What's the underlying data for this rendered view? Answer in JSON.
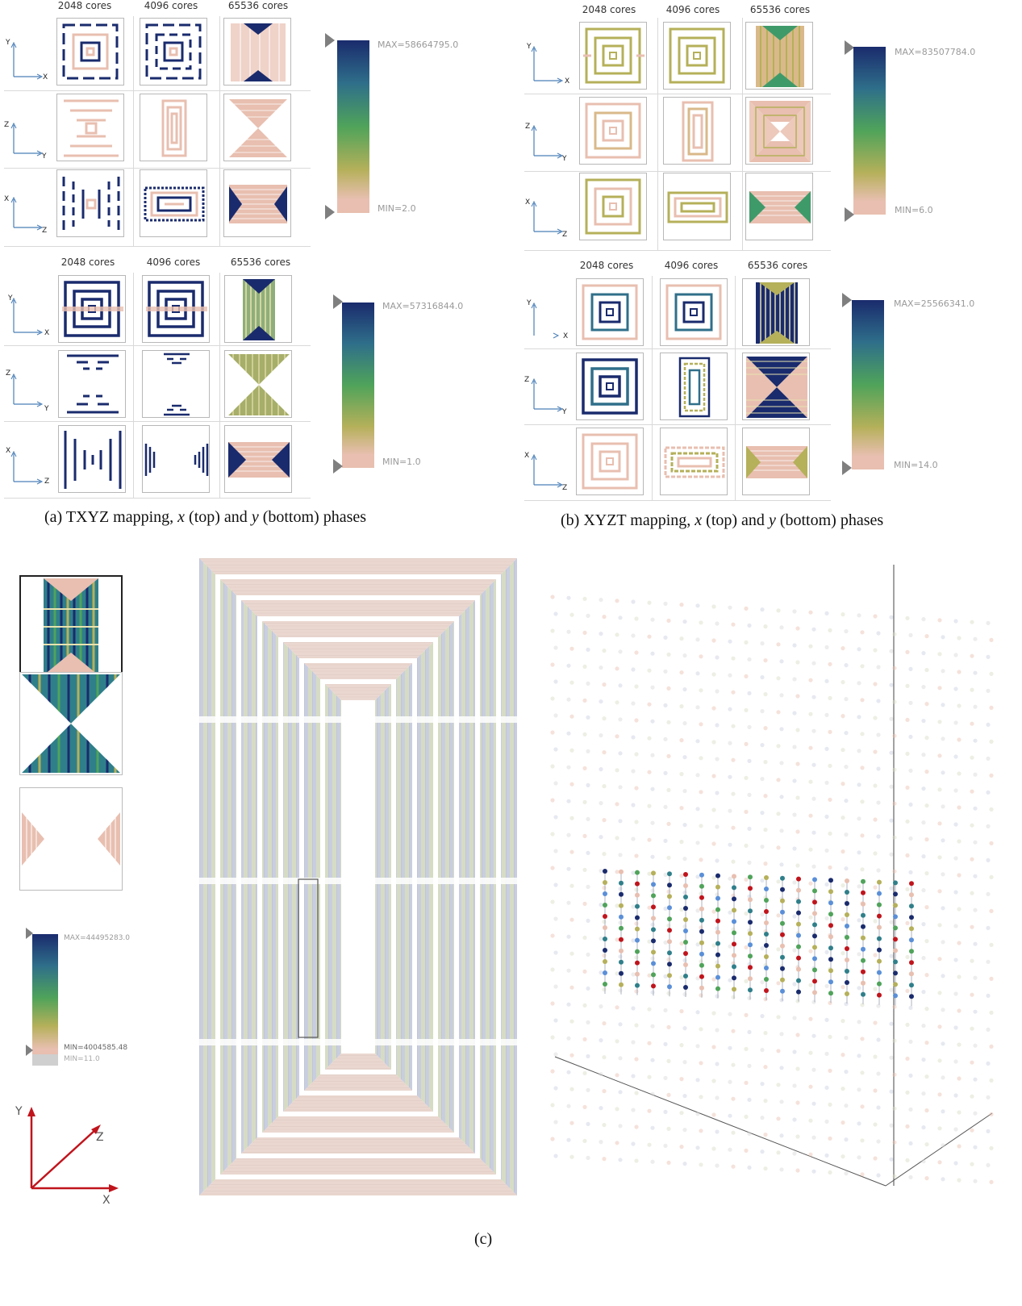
{
  "core_counts": [
    "2048 cores",
    "4096 cores",
    "65536 cores"
  ],
  "axes": {
    "xy": {
      "vertical": "Y",
      "horizontal": "X"
    },
    "zy": {
      "vertical": "Z",
      "horizontal": "Y"
    },
    "xz": {
      "vertical": "X",
      "horizontal": "Z"
    }
  },
  "panel_a": {
    "top": {
      "max": "MAX=58664795.0",
      "min": "MIN=2.0"
    },
    "bottom": {
      "max": "MAX=57316844.0",
      "min": "MIN=1.0"
    },
    "caption_parts": [
      "(a)  TXYZ mapping, ",
      "x",
      " (top) and ",
      "y",
      " (bottom) phases"
    ]
  },
  "panel_b": {
    "top": {
      "max": "MAX=83507784.0",
      "min": "MIN=6.0"
    },
    "bottom": {
      "max": "MAX=25566341.0",
      "min": "MIN=14.0"
    },
    "caption_parts": [
      "(b)  XYZT mapping, ",
      "x",
      " (top) and ",
      "y",
      " (bottom) phases"
    ]
  },
  "panel_c": {
    "max": "MAX=44495283.0",
    "min": "MIN=4004585.48",
    "min2": "MIN=11.0",
    "axis": {
      "y": "Y",
      "z": "Z",
      "x": "X"
    },
    "caption": "(c)"
  },
  "colors": {
    "navy": "#1a2b6d",
    "teal": "#2f7f8a",
    "green": "#4fa35a",
    "olive": "#b5b05a",
    "pink": "#e8bfb0",
    "axis_blue": "#4a7fb8",
    "axis_red": "#c0141c"
  }
}
